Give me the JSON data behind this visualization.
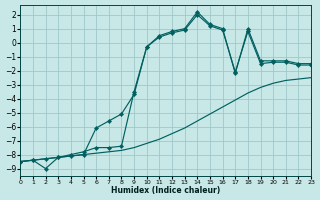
{
  "xlabel": "Humidex (Indice chaleur)",
  "bg_color": "#c8e8e8",
  "grid_color": "#a0c8c8",
  "line_color": "#006060",
  "xlim": [
    0,
    23
  ],
  "ylim": [
    -9.5,
    2.7
  ],
  "xticks": [
    0,
    1,
    2,
    3,
    4,
    5,
    6,
    7,
    8,
    9,
    10,
    11,
    12,
    13,
    14,
    15,
    16,
    17,
    18,
    19,
    20,
    21,
    22,
    23
  ],
  "yticks": [
    2,
    1,
    0,
    -1,
    -2,
    -3,
    -4,
    -5,
    -6,
    -7,
    -8,
    -9
  ],
  "line1_x": [
    0,
    1,
    2,
    3,
    4,
    5,
    6,
    7,
    8,
    9,
    10,
    11,
    12,
    13,
    14,
    15,
    16,
    17,
    18,
    19,
    20,
    21,
    22,
    23
  ],
  "line1_y": [
    -8.5,
    -8.4,
    -9.0,
    -8.2,
    -8.0,
    -7.8,
    -7.5,
    -7.5,
    -7.4,
    -3.5,
    -0.3,
    0.5,
    0.8,
    1.0,
    2.2,
    1.3,
    1.0,
    -2.2,
    1.0,
    -1.3,
    -1.3,
    -1.3,
    -1.5,
    -1.5
  ],
  "line2_x": [
    0,
    1,
    2,
    3,
    4,
    5,
    6,
    7,
    8,
    9,
    10,
    11,
    12,
    13,
    14,
    15,
    16,
    17,
    18,
    19,
    20,
    21,
    22,
    23
  ],
  "line2_y": [
    -8.5,
    -8.4,
    -8.3,
    -8.2,
    -8.1,
    -8.0,
    -7.9,
    -7.8,
    -7.7,
    -7.5,
    -7.2,
    -6.9,
    -6.5,
    -6.1,
    -5.6,
    -5.1,
    -4.6,
    -4.1,
    -3.6,
    -3.2,
    -2.9,
    -2.7,
    -2.6,
    -2.5
  ],
  "line3_x": [
    0,
    1,
    2,
    3,
    4,
    5,
    6,
    7,
    8,
    9,
    10,
    11,
    12,
    13,
    14,
    15,
    16,
    17,
    18,
    19,
    20,
    21,
    22,
    23
  ],
  "line3_y": [
    -8.5,
    -8.4,
    -8.3,
    -8.2,
    -8.1,
    -8.0,
    -6.1,
    -5.6,
    -5.1,
    -3.7,
    -0.3,
    0.4,
    0.7,
    0.9,
    2.0,
    1.2,
    0.9,
    -2.1,
    0.8,
    -1.5,
    -1.4,
    -1.4,
    -1.6,
    -1.6
  ]
}
